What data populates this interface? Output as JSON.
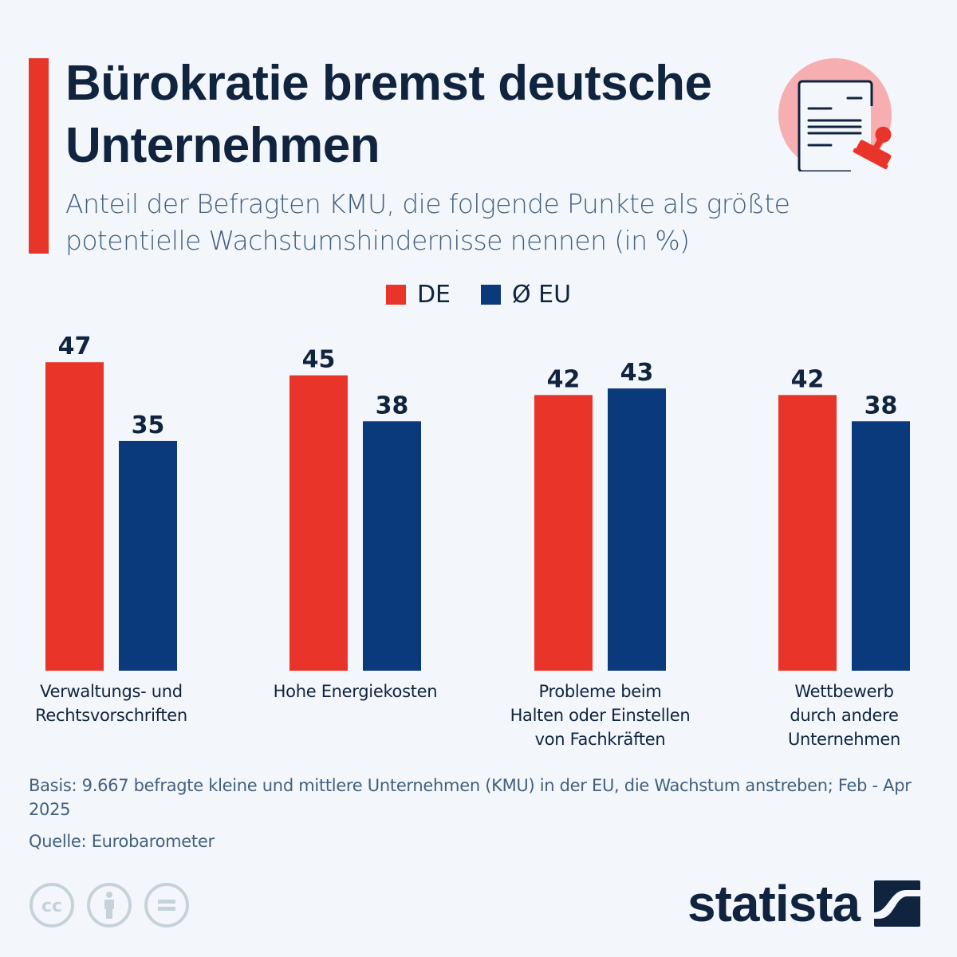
{
  "header": {
    "title": "Bürokratie bremst deutsche Unternehmen",
    "subtitle": "Anteil der Befragten KMU, die folgende Punkte als größte potentielle Wachstumshindernisse nennen (in %)",
    "icon": "document-stamp-icon"
  },
  "legend": [
    {
      "label": "DE",
      "color": "#e93529"
    },
    {
      "label": "Ø EU",
      "color": "#0b3a7c"
    }
  ],
  "chart_data": {
    "type": "bar",
    "title": "Bürokratie bremst deutsche Unternehmen",
    "subtitle": "Anteil der Befragten KMU, die folgende Punkte als größte potentielle Wachstumshindernisse nennen (in %)",
    "categories": [
      "Verwaltungs- und\nRechtsvorschriften",
      "Hohe Energiekosten",
      "Probleme beim\nHalten oder Einstellen\nvon Fachkräften",
      "Wettbewerb\ndurch andere\nUnternehmen"
    ],
    "series": [
      {
        "name": "DE",
        "color": "#e93529",
        "values": [
          47,
          45,
          42,
          42
        ]
      },
      {
        "name": "Ø EU",
        "color": "#0b3a7c",
        "values": [
          35,
          38,
          43,
          38
        ]
      }
    ],
    "xlabel": "",
    "ylabel": "",
    "ylim": [
      0,
      47
    ],
    "grid": false,
    "legend_position": "top-center",
    "data_labels": true
  },
  "footer": {
    "basis": "Basis: 9.667 befragte kleine und mittlere Unternehmen (KMU) in der EU, die Wachstum anstreben; Feb - Apr 2025",
    "source": "Quelle: Eurobarometer",
    "license_icons": [
      "cc-icon",
      "attribution-icon",
      "no-derivatives-icon"
    ],
    "brand": "statista"
  }
}
